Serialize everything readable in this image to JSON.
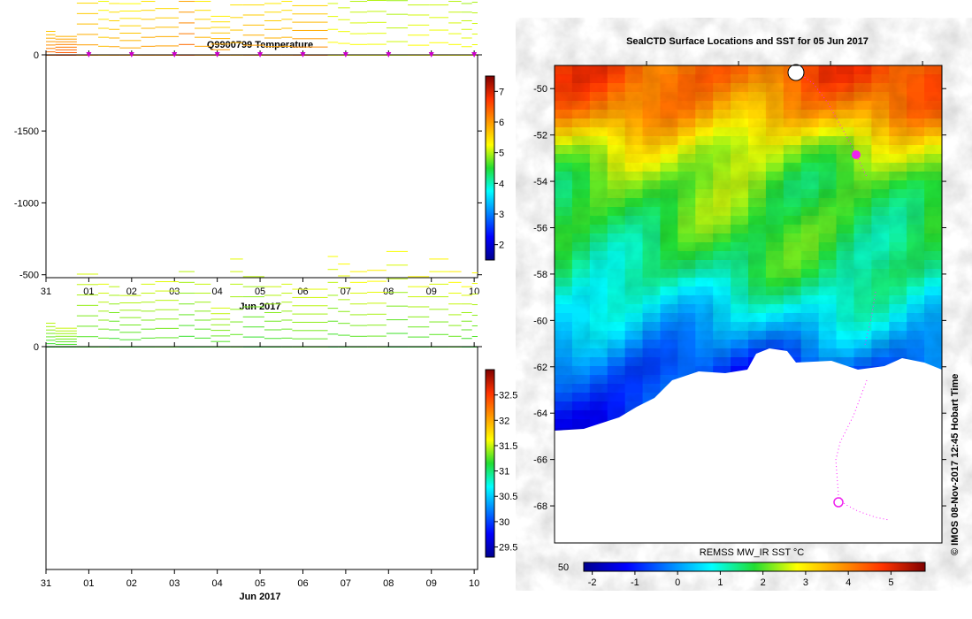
{
  "chart_data": [
    {
      "type": "heatmap",
      "title": "Q9900799  Temperature",
      "xlabel": "Jun 2017",
      "ylabel": "",
      "x_ticks": [
        "31",
        "01",
        "02",
        "03",
        "04",
        "05",
        "06",
        "07",
        "08",
        "09",
        "10"
      ],
      "x_range": [
        0,
        10.08
      ],
      "y_ticks": [
        0,
        -500,
        -1000,
        -1500
      ],
      "y_range": [
        -1550,
        0
      ],
      "colorbar": {
        "ticks": [
          2,
          3,
          4,
          5,
          6,
          7
        ],
        "range": [
          1.5,
          7.5
        ]
      },
      "marker_days": [
        1.0,
        2.0,
        3.0,
        4.0,
        5.0,
        6.0,
        7.0,
        8.0,
        9.0,
        10.0
      ],
      "profiles": [
        {
          "x": 0.0,
          "depth": 190,
          "value": 5.9
        },
        {
          "x": 0.22,
          "depth": 150,
          "value": 6.0
        },
        {
          "x": 0.72,
          "depth": 580,
          "value": 5.4
        },
        {
          "x": 1.22,
          "depth": 500,
          "value": 5.3
        },
        {
          "x": 1.47,
          "depth": 480,
          "value": 5.4
        },
        {
          "x": 1.72,
          "depth": 410,
          "value": 5.5
        },
        {
          "x": 2.22,
          "depth": 500,
          "value": 5.5
        },
        {
          "x": 2.55,
          "depth": 520,
          "value": 5.4
        },
        {
          "x": 3.1,
          "depth": 600,
          "value": 5.9
        },
        {
          "x": 3.47,
          "depth": 500,
          "value": 5.4
        },
        {
          "x": 3.85,
          "depth": 310,
          "value": 5.6
        },
        {
          "x": 4.3,
          "depth": 700,
          "value": 5.3
        },
        {
          "x": 4.6,
          "depth": 560,
          "value": 5.4
        },
        {
          "x": 5.1,
          "depth": 480,
          "value": 5.5
        },
        {
          "x": 5.5,
          "depth": 500,
          "value": 5.4
        },
        {
          "x": 5.75,
          "depth": 460,
          "value": 5.7
        },
        {
          "x": 6.58,
          "depth": 720,
          "value": 5.1
        },
        {
          "x": 6.82,
          "depth": 660,
          "value": 5.0
        },
        {
          "x": 7.1,
          "depth": 600,
          "value": 5.1
        },
        {
          "x": 7.5,
          "depth": 610,
          "value": 5.0
        },
        {
          "x": 7.95,
          "depth": 760,
          "value": 5.0
        },
        {
          "x": 8.45,
          "depth": 560,
          "value": 5.1
        },
        {
          "x": 8.95,
          "depth": 700,
          "value": 5.0
        },
        {
          "x": 9.4,
          "depth": 600,
          "value": 5.1
        },
        {
          "x": 9.7,
          "depth": 480,
          "value": 5.0
        },
        {
          "x": 9.95,
          "depth": 590,
          "value": 5.1
        }
      ]
    },
    {
      "type": "heatmap",
      "title": "",
      "xlabel": "Jun 2017",
      "ylabel": "",
      "x_ticks": [
        "31",
        "01",
        "02",
        "03",
        "04",
        "05",
        "06",
        "07",
        "08",
        "09",
        "10"
      ],
      "x_range": [
        0,
        10.08
      ],
      "y_ticks": [
        0,
        -500,
        -1000,
        -1500
      ],
      "y_range": [
        -1550,
        0
      ],
      "colorbar": {
        "ticks": [
          29.5,
          30,
          30.5,
          31,
          31.5,
          32,
          32.5
        ],
        "range": [
          29.3,
          33.0
        ]
      },
      "profiles_ref": "same casts as temperature panel",
      "surface_value": 31.15,
      "deep_value": 31.6
    },
    {
      "type": "heatmap",
      "title": "SealCTD Surface Locations and SST for 05 Jun 2017",
      "xlabel": "",
      "ylabel": "",
      "y_ticks": [
        -50,
        -52,
        -54,
        -56,
        -58,
        -60,
        -62,
        -64,
        -66,
        -68
      ],
      "y_range": [
        -69.6,
        -49.0
      ],
      "x_range": [
        48.9,
        60.0
      ],
      "x_tick_label_visible": "50",
      "colorbar": {
        "label": "REMSS MW_IR SST °C",
        "ticks": [
          -2,
          -1,
          0,
          1,
          2,
          3,
          4,
          5
        ],
        "range": [
          -2.2,
          5.8
        ]
      },
      "sst_profile": [
        {
          "lat": -49.5,
          "value": 4.4
        },
        {
          "lat": -51.0,
          "value": 3.8
        },
        {
          "lat": -52.5,
          "value": 2.6
        },
        {
          "lat": -54.0,
          "value": 2.0
        },
        {
          "lat": -56.0,
          "value": 1.8
        },
        {
          "lat": -58.0,
          "value": 1.4
        },
        {
          "lat": -60.0,
          "value": 0.5
        },
        {
          "lat": -62.0,
          "value": -0.6
        },
        {
          "lat": -64.0,
          "value": -1.0
        }
      ],
      "credit": "© IMOS 08-Nov-2017 12:45 Hobart Time"
    }
  ]
}
